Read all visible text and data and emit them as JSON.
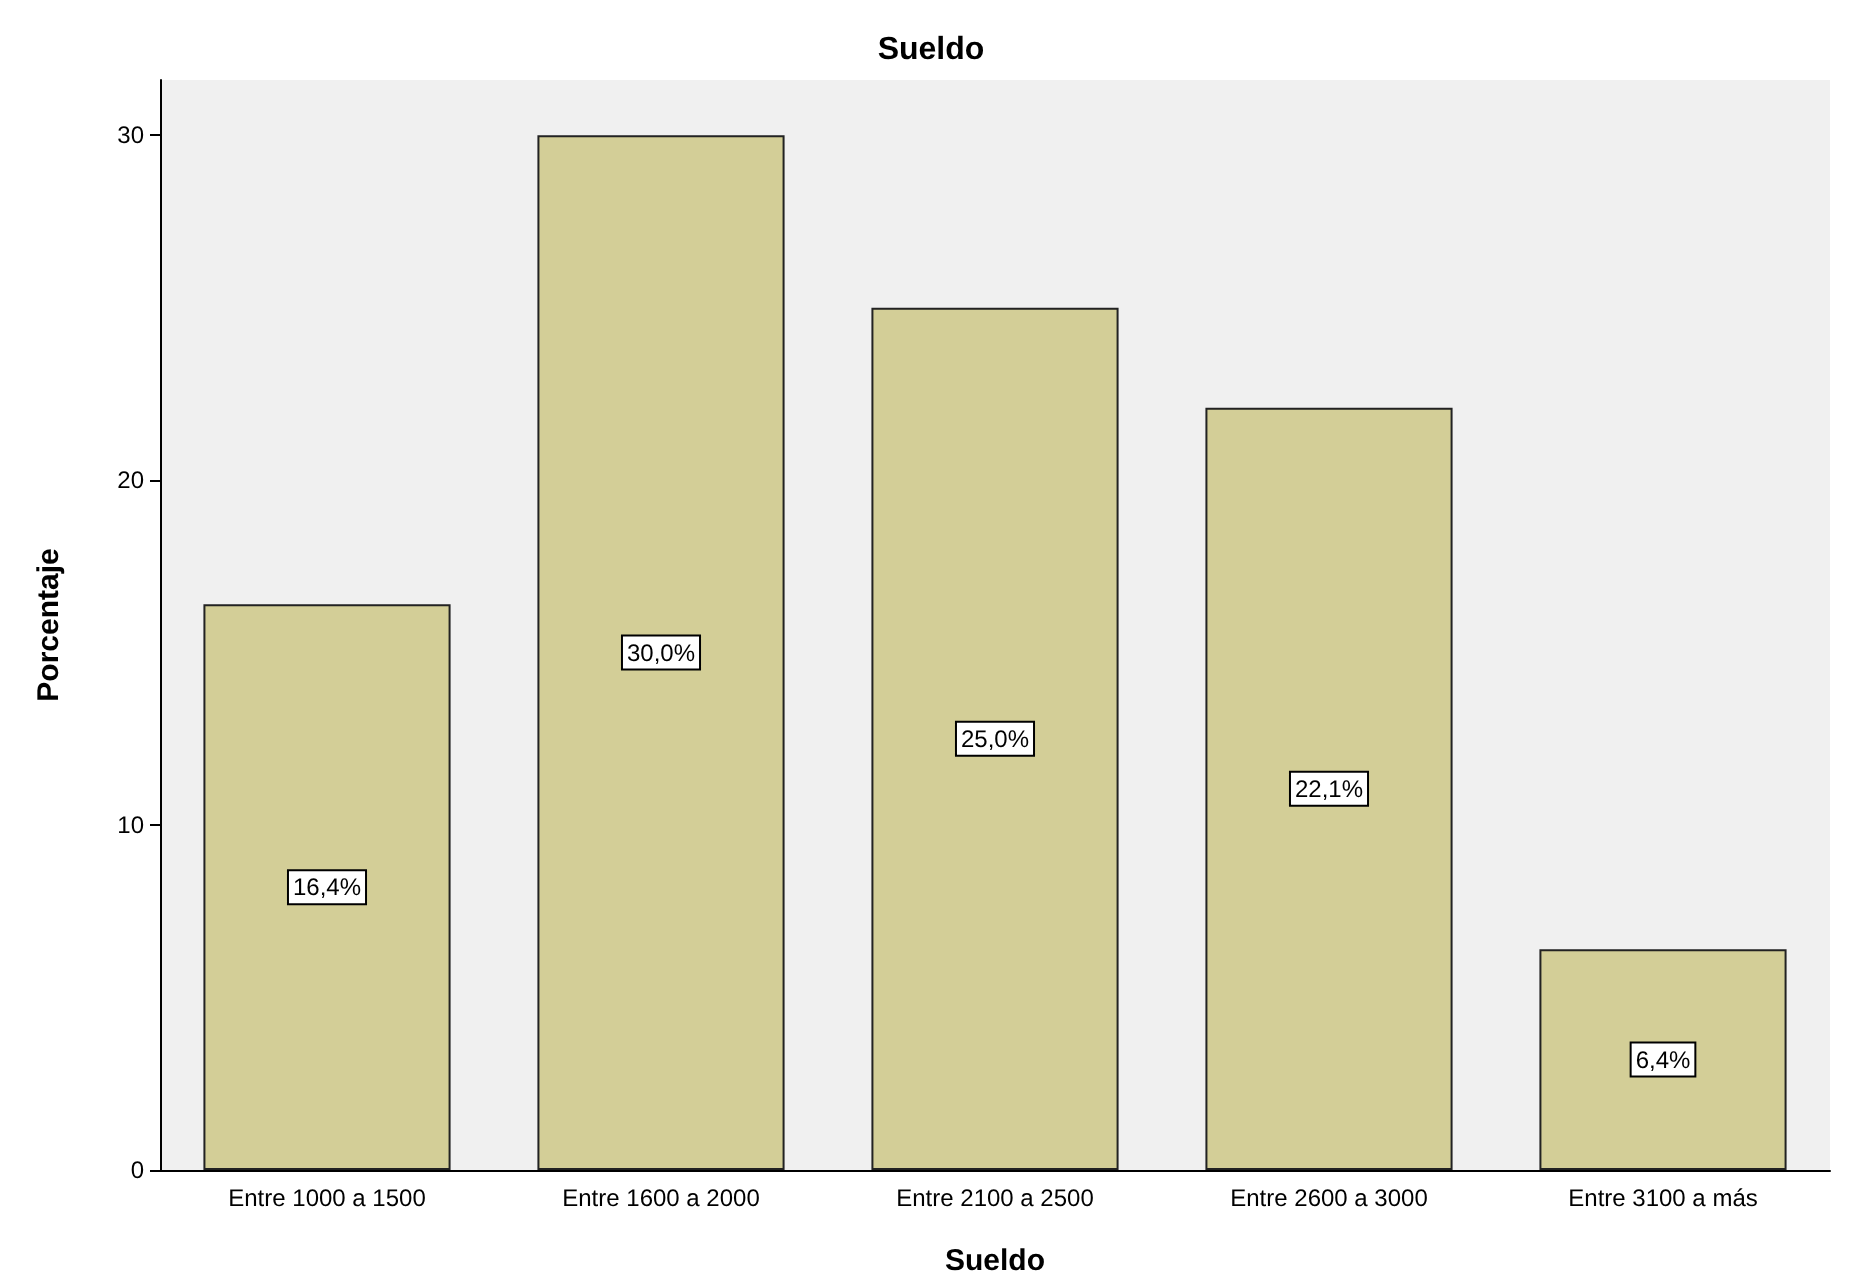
{
  "chart_data": {
    "type": "bar",
    "title": "Sueldo",
    "xlabel": "Sueldo",
    "ylabel": "Porcentaje",
    "categories": [
      "Entre 1000 a 1500",
      "Entre 1600 a 2000",
      "Entre 2100 a 2500",
      "Entre 2600 a 3000",
      "Entre 3100 a más"
    ],
    "values": [
      16.4,
      30.0,
      25.0,
      22.1,
      6.4
    ],
    "value_labels": [
      "16,4%",
      "30,0%",
      "25,0%",
      "22,1%",
      "6,4%"
    ],
    "color": "#d3ce97",
    "ylim": [
      0,
      31.6
    ],
    "yticks": [
      0,
      10,
      20,
      30
    ],
    "grid": false
  }
}
